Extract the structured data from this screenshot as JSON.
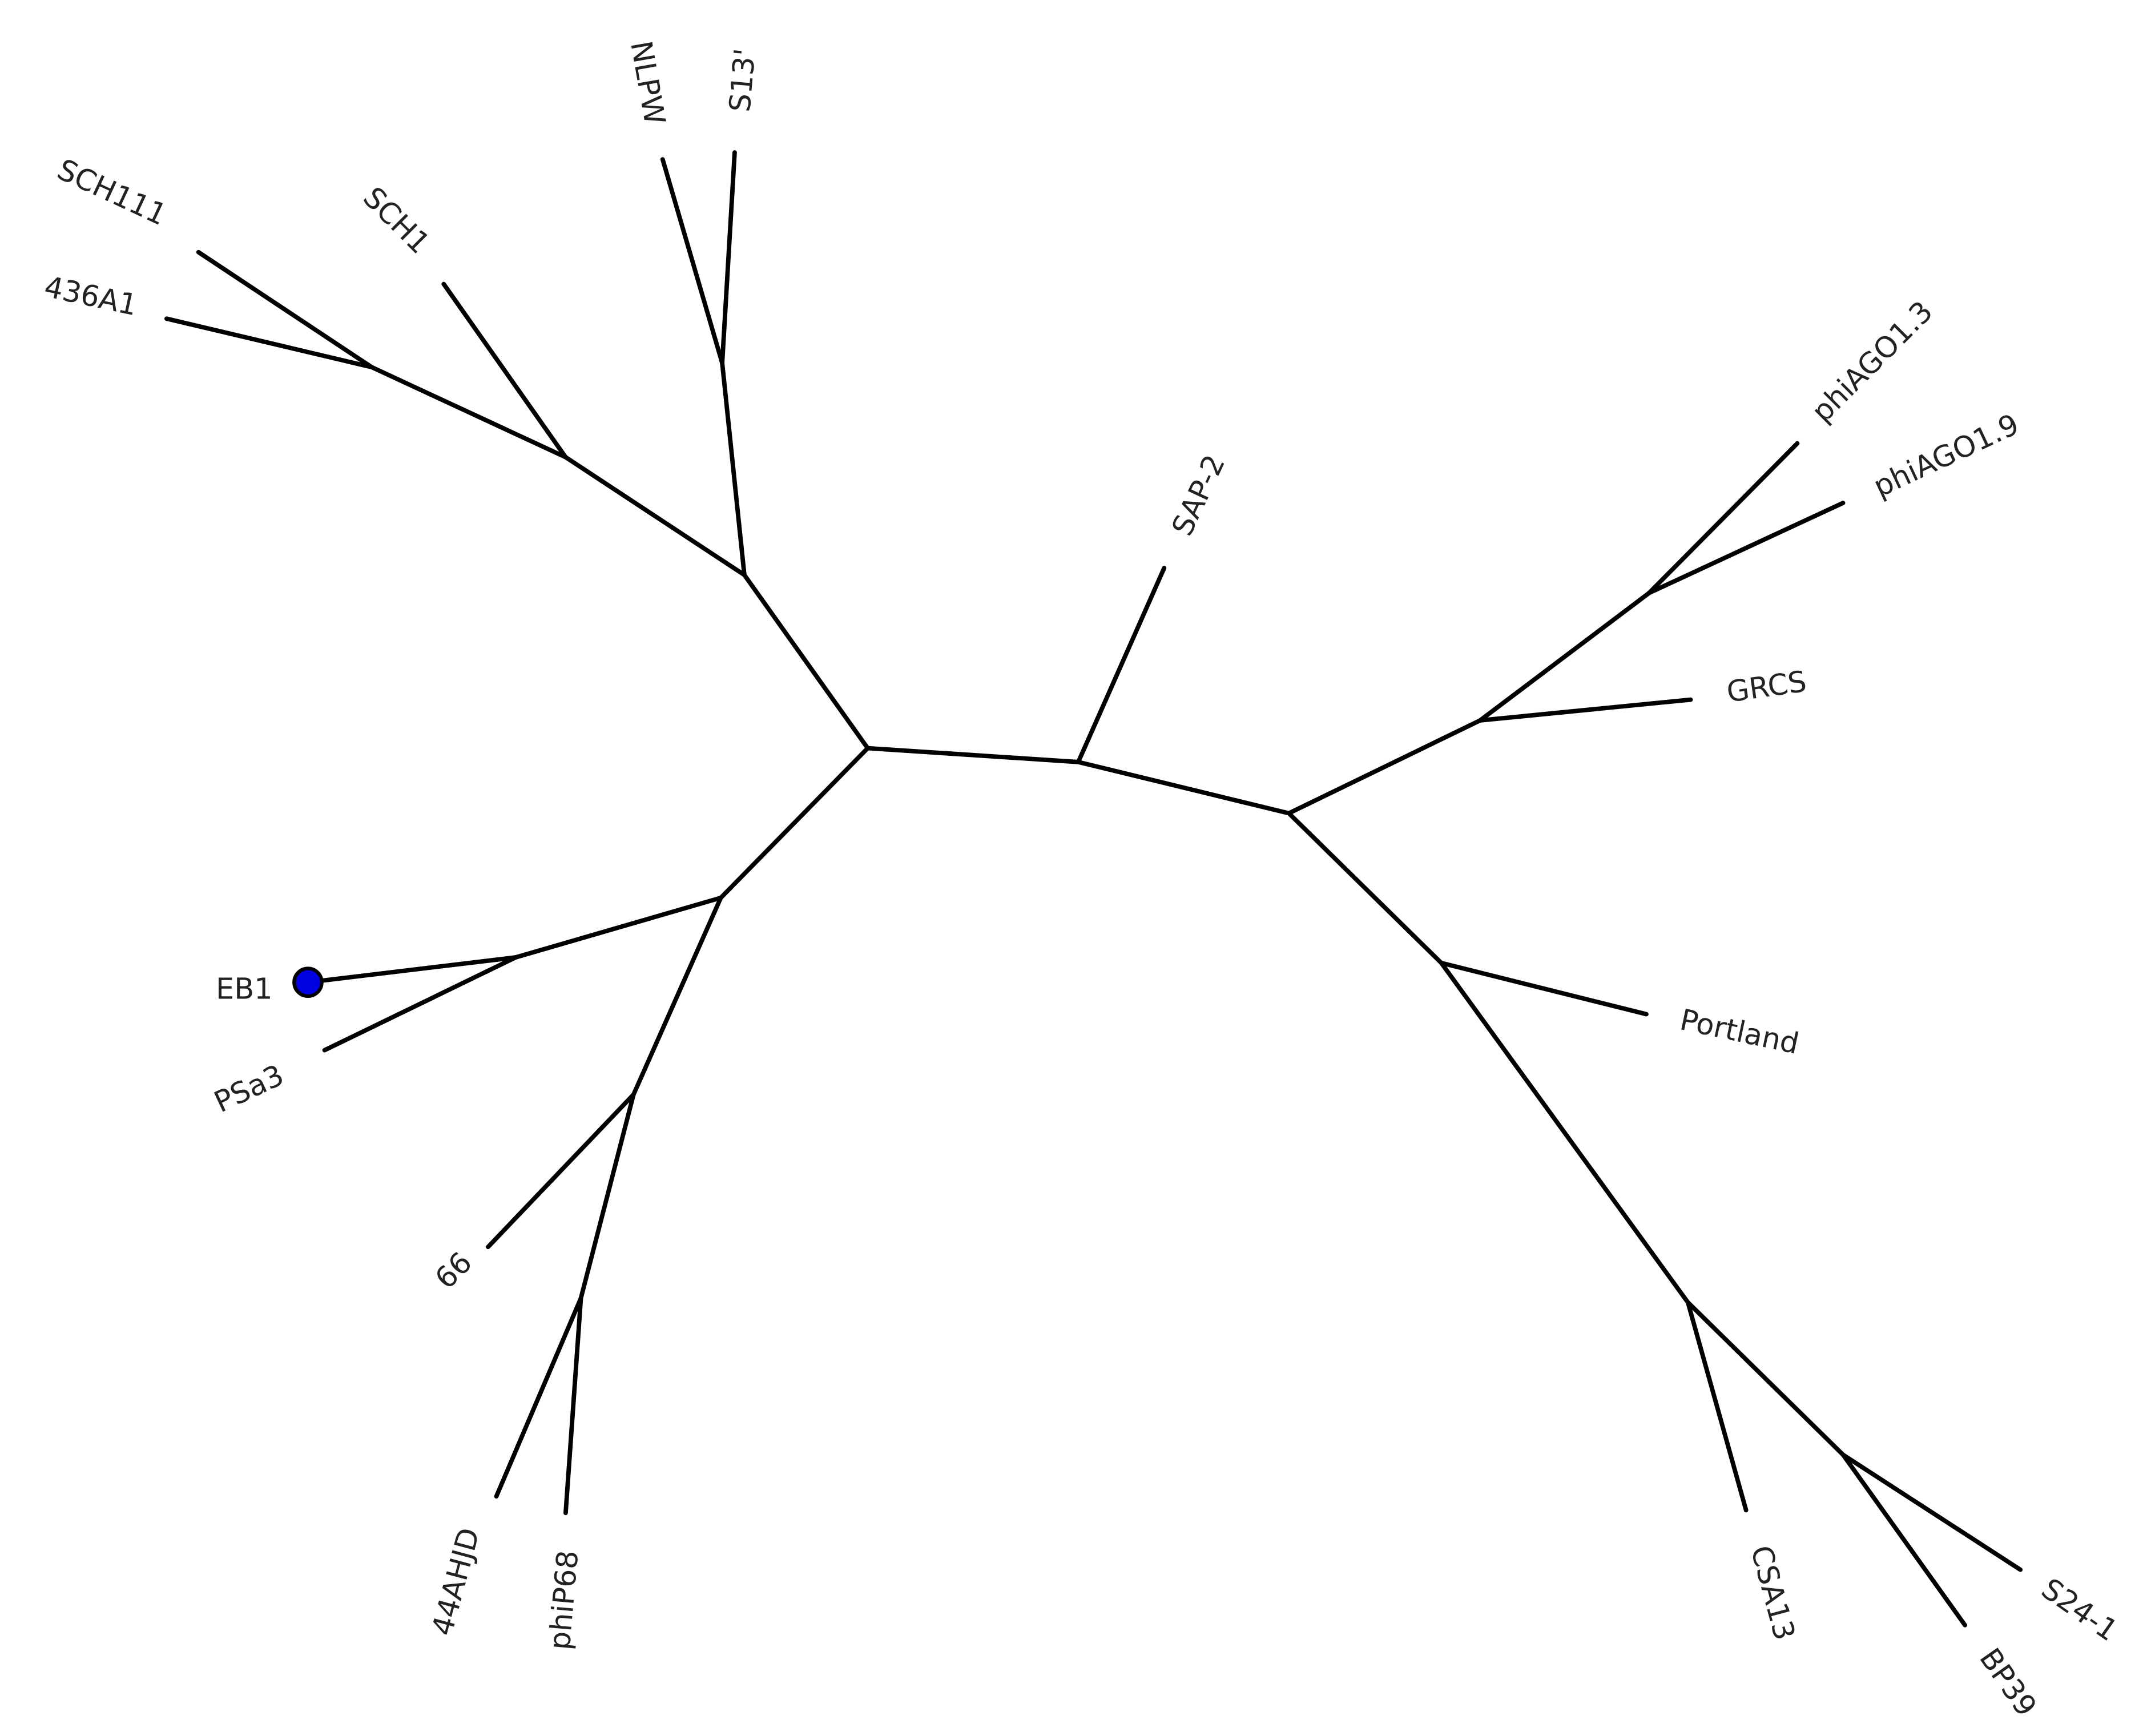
{
  "leaves": [
    "SCH111",
    "436A1",
    "SCH1",
    "NLPW",
    "S13'",
    "SAP-2",
    "phiAGO1.3",
    "phiAGO1.9",
    "GRCS",
    "Portland",
    "CSA13",
    "S24-1",
    "BP39",
    "EB1",
    "PSa3",
    "66",
    "44AHJD",
    "phiP68"
  ]
}
